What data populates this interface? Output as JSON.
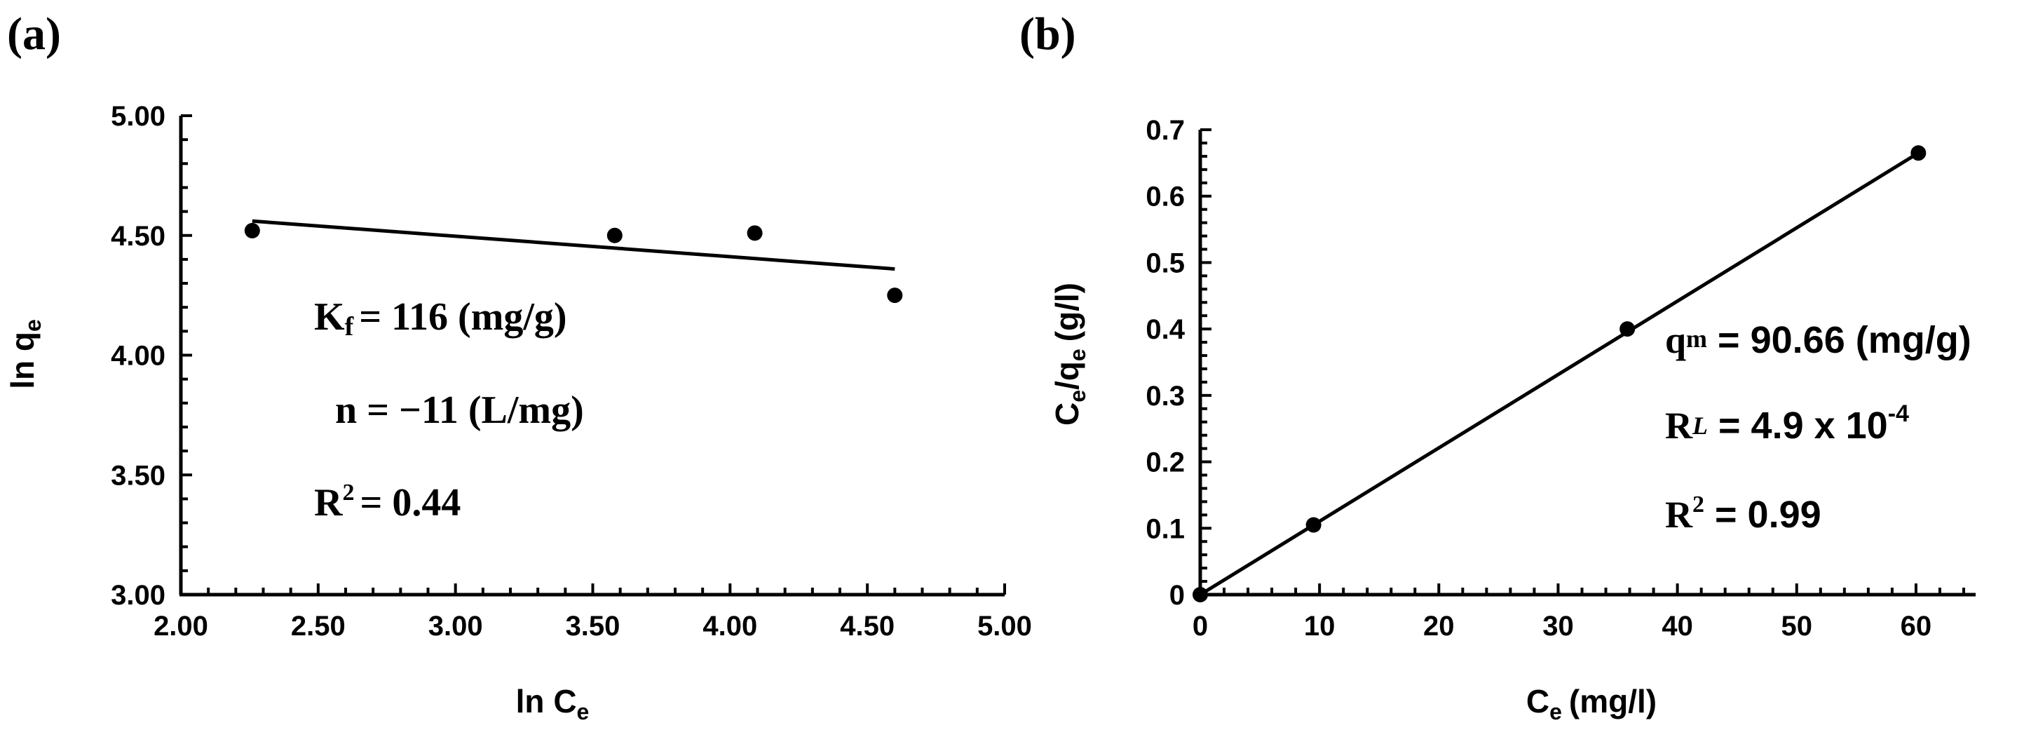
{
  "chart_data": [
    {
      "panel": "(a)",
      "type": "scatter",
      "xlabel": "ln C",
      "xlabel_sub": "e",
      "ylabel": "ln q",
      "ylabel_sub": "e",
      "xlim": [
        2.0,
        5.0
      ],
      "ylim": [
        3.0,
        5.0
      ],
      "xticks": [
        2.0,
        2.5,
        3.0,
        3.5,
        4.0,
        4.5,
        5.0
      ],
      "xtick_labels": [
        "2.00",
        "2.50",
        "3.00",
        "3.50",
        "4.00",
        "4.50",
        "5.00"
      ],
      "yticks": [
        3.0,
        3.5,
        4.0,
        4.5,
        5.0
      ],
      "ytick_labels": [
        "3.00",
        "3.50",
        "4.00",
        "4.50",
        "5.00"
      ],
      "points": [
        {
          "x": 2.26,
          "y": 4.52
        },
        {
          "x": 3.58,
          "y": 4.5
        },
        {
          "x": 4.09,
          "y": 4.51
        },
        {
          "x": 4.6,
          "y": 4.25
        }
      ],
      "fit_line": {
        "x": [
          2.26,
          4.6
        ],
        "y": [
          4.56,
          4.36
        ]
      },
      "annotations": {
        "kf_label": "K",
        "kf_sub": "f",
        "kf_value": "= 116 (mg/g)",
        "n_text": "n = −11 (L/mg)",
        "r2_label": "R",
        "r2_sup": "2",
        "r2_value": "= 0.44"
      }
    },
    {
      "panel": "(b)",
      "type": "scatter",
      "xlabel_pre": "C",
      "xlabel_sub": "e",
      "xlabel_post": "(mg/l)",
      "ylabel_c": "C",
      "ylabel_sub1": "e",
      "ylabel_mid": "/q",
      "ylabel_sub2": "e",
      "ylabel_post": "(g/l)",
      "xlim": [
        0,
        65
      ],
      "ylim": [
        0,
        0.7
      ],
      "xticks": [
        0,
        10,
        20,
        30,
        40,
        50,
        60
      ],
      "xtick_labels": [
        "0",
        "10",
        "20",
        "30",
        "40",
        "50",
        "60"
      ],
      "yticks": [
        0,
        0.1,
        0.2,
        0.3,
        0.4,
        0.5,
        0.6,
        0.7
      ],
      "ytick_labels": [
        "0",
        "0.1",
        "0.2",
        "0.3",
        "0.4",
        "0.5",
        "0.6",
        "0.7"
      ],
      "points": [
        {
          "x": 0,
          "y": 0.0
        },
        {
          "x": 9.5,
          "y": 0.105
        },
        {
          "x": 35.8,
          "y": 0.4
        },
        {
          "x": 60.2,
          "y": 0.665
        }
      ],
      "fit_line": {
        "x": [
          0,
          60.2
        ],
        "y": [
          0.0,
          0.665
        ]
      },
      "annotations": {
        "qm_label": "q",
        "qm_sub": "m",
        "qm_value": " = 90.66 (mg/g)",
        "rl_label": "R",
        "rl_sub": "L",
        "rl_value": " = 4.9 x 10",
        "rl_exp": "-4",
        "r2_label": "R",
        "r2_sup": "2",
        "r2_value": " = 0.99"
      }
    }
  ]
}
